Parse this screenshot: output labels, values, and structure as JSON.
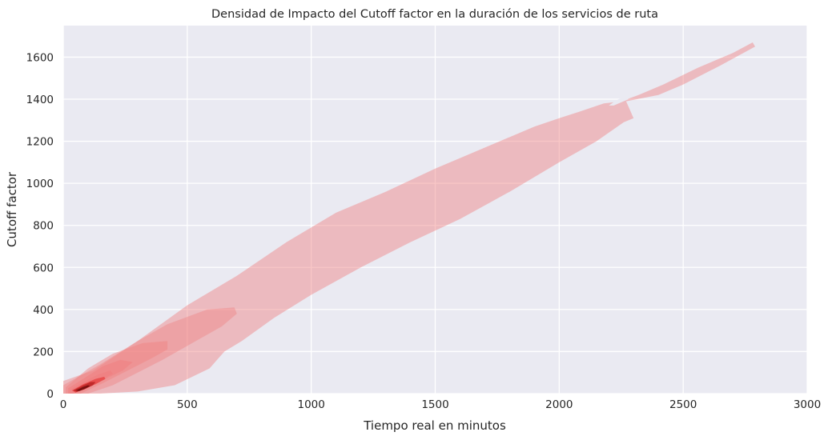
{
  "chart_data": {
    "type": "kde_density_contour",
    "title": "Densidad de Impacto del Cutoff factor en la duración de los servicios de ruta",
    "xlabel": "Tiempo real en minutos",
    "ylabel": "Cutoff factor",
    "xlim": [
      0,
      3000
    ],
    "ylim": [
      0,
      1750
    ],
    "x_ticks": [
      0,
      500,
      1000,
      1500,
      2000,
      2500,
      3000
    ],
    "y_ticks": [
      0,
      200,
      400,
      600,
      800,
      1000,
      1200,
      1400,
      1600
    ],
    "grid": true,
    "background_color": "#eaeaf2",
    "grid_color": "#ffffff",
    "fill_color": "#f08080",
    "levels": [
      {
        "opacity": 0.45,
        "polygon": [
          [
            0,
            60
          ],
          [
            120,
            110
          ],
          [
            300,
            250
          ],
          [
            500,
            420
          ],
          [
            700,
            560
          ],
          [
            900,
            720
          ],
          [
            1100,
            860
          ],
          [
            1300,
            960
          ],
          [
            1500,
            1070
          ],
          [
            1700,
            1170
          ],
          [
            1900,
            1270
          ],
          [
            2000,
            1310
          ],
          [
            2080,
            1340
          ],
          [
            2180,
            1380
          ],
          [
            2250,
            1390
          ],
          [
            2320,
            1420
          ],
          [
            2420,
            1470
          ],
          [
            2560,
            1550
          ],
          [
            2700,
            1620
          ],
          [
            2780,
            1670
          ],
          [
            2790,
            1650
          ],
          [
            2650,
            1560
          ],
          [
            2500,
            1470
          ],
          [
            2400,
            1420
          ],
          [
            2270,
            1390
          ],
          [
            2300,
            1310
          ],
          [
            2260,
            1290
          ],
          [
            2150,
            1200
          ],
          [
            2000,
            1100
          ],
          [
            1800,
            960
          ],
          [
            1600,
            830
          ],
          [
            1400,
            720
          ],
          [
            1200,
            600
          ],
          [
            1000,
            470
          ],
          [
            850,
            360
          ],
          [
            720,
            250
          ],
          [
            650,
            200
          ],
          [
            620,
            160
          ],
          [
            590,
            120
          ],
          [
            450,
            40
          ],
          [
            300,
            10
          ],
          [
            150,
            0
          ],
          [
            0,
            0
          ]
        ]
      },
      {
        "opacity": 0.4,
        "polygon": [
          [
            0,
            40
          ],
          [
            150,
            140
          ],
          [
            300,
            250
          ],
          [
            420,
            330
          ],
          [
            580,
            400
          ],
          [
            690,
            410
          ],
          [
            700,
            380
          ],
          [
            640,
            320
          ],
          [
            520,
            240
          ],
          [
            400,
            160
          ],
          [
            300,
            100
          ],
          [
            200,
            40
          ],
          [
            100,
            0
          ],
          [
            0,
            0
          ]
        ]
      },
      {
        "opacity": 0.45,
        "polygon": [
          [
            10,
            30
          ],
          [
            100,
            120
          ],
          [
            200,
            190
          ],
          [
            320,
            240
          ],
          [
            420,
            250
          ],
          [
            420,
            210
          ],
          [
            360,
            170
          ],
          [
            260,
            110
          ],
          [
            160,
            50
          ],
          [
            70,
            0
          ],
          [
            10,
            0
          ]
        ]
      },
      {
        "opacity": 0.55,
        "polygon": [
          [
            20,
            25
          ],
          [
            80,
            70
          ],
          [
            160,
            130
          ],
          [
            230,
            160
          ],
          [
            280,
            150
          ],
          [
            240,
            110
          ],
          [
            170,
            70
          ],
          [
            100,
            30
          ],
          [
            40,
            0
          ],
          [
            20,
            0
          ]
        ]
      },
      {
        "opacity": 0.7,
        "polygon": [
          [
            30,
            20
          ],
          [
            80,
            55
          ],
          [
            140,
            90
          ],
          [
            190,
            110
          ],
          [
            200,
            95
          ],
          [
            150,
            60
          ],
          [
            100,
            30
          ],
          [
            50,
            5
          ]
        ]
      },
      {
        "opacity": 0.85,
        "color": "#e84848",
        "polygon": [
          [
            35,
            15
          ],
          [
            80,
            45
          ],
          [
            130,
            70
          ],
          [
            165,
            80
          ],
          [
            170,
            70
          ],
          [
            130,
            45
          ],
          [
            85,
            25
          ],
          [
            50,
            5
          ]
        ]
      },
      {
        "opacity": 0.95,
        "color": "#c02828",
        "polygon": [
          [
            40,
            15
          ],
          [
            80,
            40
          ],
          [
            110,
            55
          ],
          [
            130,
            55
          ],
          [
            120,
            40
          ],
          [
            85,
            20
          ],
          [
            55,
            8
          ]
        ]
      },
      {
        "opacity": 1.0,
        "color": "#7a1010",
        "polygon": [
          [
            50,
            15
          ],
          [
            80,
            32
          ],
          [
            100,
            40
          ],
          [
            108,
            36
          ],
          [
            90,
            25
          ],
          [
            65,
            12
          ]
        ]
      }
    ],
    "grid_gap": {
      "polygon": [
        [
          2200,
          1370
        ],
        [
          2230,
          1395
        ],
        [
          2260,
          1410
        ],
        [
          2280,
          1400
        ],
        [
          2250,
          1385
        ],
        [
          2220,
          1370
        ]
      ]
    }
  }
}
